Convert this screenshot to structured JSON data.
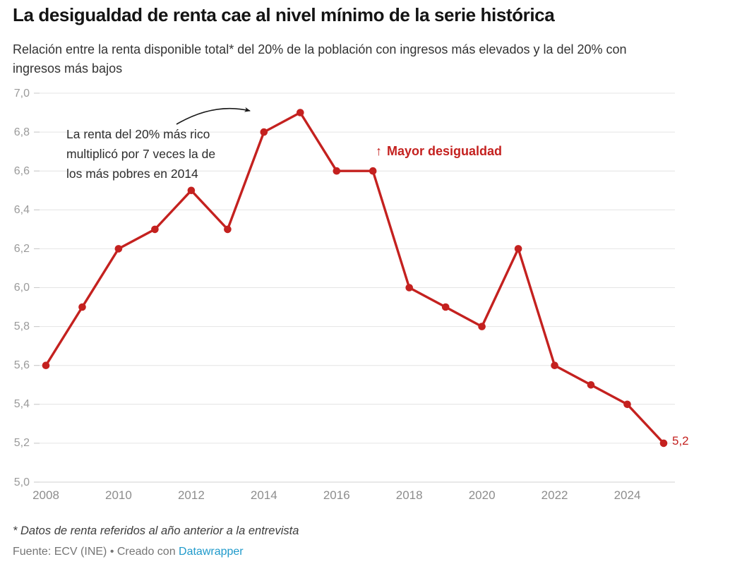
{
  "header": {
    "title": "La desigualdad de renta cae al nivel mínimo de la serie histórica",
    "subtitle": "Relación entre la renta disponible total* del 20% de la población con ingresos más elevados y la del 20% con ingresos más bajos"
  },
  "chart_data": {
    "type": "line",
    "x": [
      2008,
      2009,
      2010,
      2011,
      2012,
      2013,
      2014,
      2015,
      2016,
      2017,
      2018,
      2019,
      2020,
      2021,
      2022,
      2023,
      2024,
      2025
    ],
    "values": [
      5.6,
      5.9,
      6.2,
      6.3,
      6.5,
      6.3,
      6.8,
      6.9,
      6.6,
      6.6,
      6.0,
      5.9,
      5.8,
      6.2,
      5.6,
      5.5,
      5.4,
      5.2
    ],
    "title": "La desigualdad de renta cae al nivel mínimo de la serie histórica",
    "xlabel": "",
    "ylabel": "",
    "ylim": [
      5.0,
      7.0
    ],
    "xlim": [
      2008,
      2025
    ],
    "grid": "horizontal",
    "legend": "none",
    "line_color": "#c4211f",
    "end_label": "5,2",
    "y_ticks": [
      {
        "value": 5.0,
        "label": "5,0"
      },
      {
        "value": 5.2,
        "label": "5,2"
      },
      {
        "value": 5.4,
        "label": "5,4"
      },
      {
        "value": 5.6,
        "label": "5,6"
      },
      {
        "value": 5.8,
        "label": "5,8"
      },
      {
        "value": 6.0,
        "label": "6,0"
      },
      {
        "value": 6.2,
        "label": "6,2"
      },
      {
        "value": 6.4,
        "label": "6,4"
      },
      {
        "value": 6.6,
        "label": "6,6"
      },
      {
        "value": 6.8,
        "label": "6,8"
      },
      {
        "value": 7.0,
        "label": "7,0"
      }
    ],
    "x_ticks": [
      "2008",
      "2010",
      "2012",
      "2014",
      "2016",
      "2018",
      "2020",
      "2022",
      "2024"
    ]
  },
  "annotations": {
    "note": {
      "lines": [
        "La renta del 20% más rico",
        "multiplicó por 7 veces la de",
        "los más pobres en 2014"
      ]
    },
    "direction": {
      "arrow": "↑",
      "label": "Mayor desigualdad"
    }
  },
  "footer": {
    "footnote": "* Datos de renta referidos al año anterior a la entrevista",
    "source_prefix": "Fuente: ECV (INE) • Creado con ",
    "source_link": "Datawrapper"
  },
  "colors": {
    "accent_red": "#c4211f",
    "link_blue": "#1f9acb",
    "gridline": "#e4e4e4",
    "axis_line": "#d2d2d2",
    "tick_mark": "#c8c8c8",
    "annotation_arrow": "#1a1a1a"
  }
}
